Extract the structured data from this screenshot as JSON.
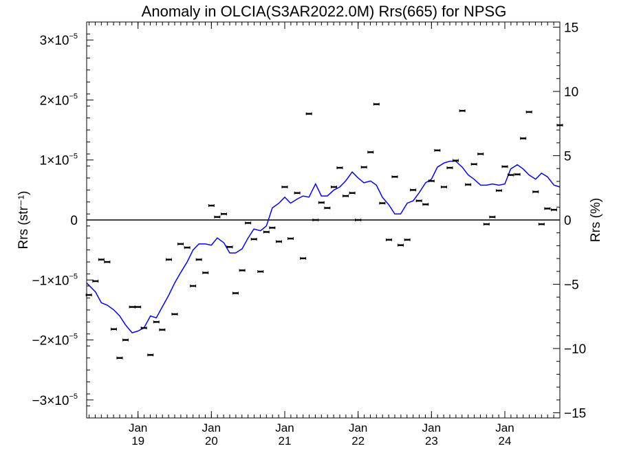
{
  "chart_data": {
    "type": "line",
    "title": "Anomaly in OLCIA(S3AR2022.0M) Rrs(665) for NPSG",
    "ylabel_left": "Rrs (str⁻¹)",
    "ylabel_right": "Rrs (%)",
    "x_range": [
      2018.3,
      2024.75
    ],
    "ylim_left": [
      -3.3e-05,
      3.3e-05
    ],
    "ylim_right": [
      -15.4,
      15.4
    ],
    "grid": false,
    "left_ticks": [
      {
        "v": 3e-05,
        "mant": "3×10",
        "exp": "−5"
      },
      {
        "v": 2e-05,
        "mant": "2×10",
        "exp": "−5"
      },
      {
        "v": 1e-05,
        "mant": "1×10",
        "exp": "−5"
      },
      {
        "v": 0,
        "mant": "0",
        "exp": ""
      },
      {
        "v": -1e-05,
        "mant": "−1×10",
        "exp": "−5"
      },
      {
        "v": -2e-05,
        "mant": "−2×10",
        "exp": "−5"
      },
      {
        "v": -3e-05,
        "mant": "−3×10",
        "exp": "−5"
      }
    ],
    "right_ticks": [
      {
        "v": 15,
        "label": "15"
      },
      {
        "v": 10,
        "label": "10"
      },
      {
        "v": 5,
        "label": "5"
      },
      {
        "v": 0,
        "label": "0"
      },
      {
        "v": -5,
        "label": "−5"
      },
      {
        "v": -10,
        "label": "−10"
      },
      {
        "v": -15,
        "label": "−15"
      }
    ],
    "x_ticks": [
      {
        "x": 2019.0,
        "month": "Jan",
        "year": "19"
      },
      {
        "x": 2020.0,
        "month": "Jan",
        "year": "20"
      },
      {
        "x": 2021.0,
        "month": "Jan",
        "year": "21"
      },
      {
        "x": 2022.0,
        "month": "Jan",
        "year": "22"
      },
      {
        "x": 2023.0,
        "month": "Jan",
        "year": "23"
      },
      {
        "x": 2024.0,
        "month": "Jan",
        "year": "24"
      }
    ],
    "reference_line": {
      "y": 0,
      "color": "#000000"
    },
    "series": [
      {
        "style": "points_with_errorbars",
        "color": "#000000",
        "x": [
          2018.33,
          2018.42,
          2018.5,
          2018.58,
          2018.67,
          2018.75,
          2018.83,
          2018.92,
          2019.0,
          2019.08,
          2019.17,
          2019.25,
          2019.33,
          2019.42,
          2019.5,
          2019.58,
          2019.67,
          2019.75,
          2019.83,
          2019.92,
          2020.0,
          2020.08,
          2020.17,
          2020.25,
          2020.33,
          2020.42,
          2020.5,
          2020.58,
          2020.67,
          2020.75,
          2020.83,
          2020.92,
          2021.0,
          2021.08,
          2021.17,
          2021.25,
          2021.33,
          2021.42,
          2021.5,
          2021.58,
          2021.67,
          2021.75,
          2021.83,
          2021.92,
          2022.0,
          2022.08,
          2022.17,
          2022.25,
          2022.33,
          2022.42,
          2022.5,
          2022.58,
          2022.67,
          2022.75,
          2022.83,
          2022.92,
          2023.0,
          2023.08,
          2023.17,
          2023.25,
          2023.33,
          2023.42,
          2023.5,
          2023.58,
          2023.67,
          2023.75,
          2023.83,
          2023.92,
          2024.0,
          2024.08,
          2024.17,
          2024.25,
          2024.33,
          2024.42,
          2024.5,
          2024.58,
          2024.67,
          2024.75
        ],
        "y": [
          -1.25e-05,
          -1.02e-05,
          -6.6e-06,
          -7e-06,
          -1.82e-05,
          -2.3e-05,
          -2e-05,
          -1.45e-05,
          -1.45e-05,
          -1.8e-05,
          -2.25e-05,
          -1.7e-05,
          -1.83e-05,
          -6.6e-06,
          -1.57e-05,
          -4e-06,
          -4.6e-06,
          -1.1e-05,
          -6.6e-06,
          -8.8e-06,
          2.4e-06,
          5e-07,
          1e-06,
          -4.5e-06,
          -1.22e-05,
          -8.4e-06,
          -5e-07,
          -3.2e-06,
          -8.6e-06,
          -2e-06,
          -1.3e-06,
          -3.6e-06,
          5.5e-06,
          -3.1e-06,
          4.5e-06,
          -6.4e-06,
          1.77e-05,
          0,
          2.9e-06,
          2e-06,
          5.5e-06,
          8.7e-06,
          4e-06,
          4.5e-06,
          0,
          8.8e-06,
          1.13e-05,
          1.93e-05,
          2.8e-06,
          -3.3e-06,
          7.2e-06,
          -4.2e-06,
          -3.3e-06,
          5e-06,
          3.2e-06,
          2.6e-06,
          6.5e-06,
          1.16e-05,
          5.5e-06,
          8.7e-06,
          9.9e-06,
          1.82e-05,
          5.9e-06,
          9.3e-06,
          1.1e-05,
          -7e-07,
          5e-07,
          4.9e-06,
          8.9e-06,
          7.5e-06,
          7.6e-06,
          1.36e-05,
          1.8e-05,
          4.7e-06,
          -7e-07,
          1.9e-06,
          1.7e-06,
          1.58e-05
        ]
      },
      {
        "style": "line",
        "color": "#0000ff",
        "x": [
          2018.3,
          2018.42,
          2018.5,
          2018.58,
          2018.67,
          2018.75,
          2018.83,
          2018.92,
          2019.0,
          2019.08,
          2019.17,
          2019.25,
          2019.33,
          2019.42,
          2019.5,
          2019.58,
          2019.67,
          2019.75,
          2019.83,
          2019.92,
          2020.0,
          2020.08,
          2020.17,
          2020.25,
          2020.33,
          2020.42,
          2020.5,
          2020.58,
          2020.67,
          2020.75,
          2020.83,
          2020.92,
          2021.0,
          2021.08,
          2021.17,
          2021.25,
          2021.33,
          2021.42,
          2021.5,
          2021.58,
          2021.67,
          2021.75,
          2021.83,
          2021.92,
          2022.0,
          2022.08,
          2022.17,
          2022.25,
          2022.33,
          2022.42,
          2022.5,
          2022.58,
          2022.67,
          2022.75,
          2022.83,
          2022.92,
          2023.0,
          2023.08,
          2023.17,
          2023.25,
          2023.33,
          2023.42,
          2023.5,
          2023.58,
          2023.67,
          2023.75,
          2023.83,
          2023.92,
          2024.0,
          2024.08,
          2024.17,
          2024.25,
          2024.33,
          2024.42,
          2024.5,
          2024.58,
          2024.67,
          2024.75
        ],
        "y": [
          -1.05e-05,
          -1.2e-05,
          -1.38e-05,
          -1.42e-05,
          -1.5e-05,
          -1.6e-05,
          -1.75e-05,
          -1.88e-05,
          -1.85e-05,
          -1.8e-05,
          -1.6e-05,
          -1.63e-05,
          -1.45e-05,
          -1.25e-05,
          -1.05e-05,
          -8.8e-06,
          -7e-06,
          -5e-06,
          -4e-06,
          -4e-06,
          -4.2e-06,
          -3e-06,
          -3.8e-06,
          -5.5e-06,
          -5.5e-06,
          -4.8e-06,
          -3e-06,
          -1.5e-06,
          -1.8e-06,
          -1e-06,
          2e-06,
          2.8e-06,
          3.8e-06,
          2.8e-06,
          3.5e-06,
          4e-06,
          3.8e-06,
          6e-06,
          4e-06,
          4e-06,
          5e-06,
          5.5e-06,
          6.5e-06,
          8e-06,
          7e-06,
          6.2e-06,
          6.5e-06,
          5.8e-06,
          3.8e-06,
          2.5e-06,
          1e-06,
          1e-06,
          2.8e-06,
          3.2e-06,
          4.5e-06,
          6.2e-06,
          6.8e-06,
          8.8e-06,
          9.5e-06,
          9.8e-06,
          9.8e-06,
          8.8e-06,
          7.5e-06,
          6.8e-06,
          5.8e-06,
          5.8e-06,
          6e-06,
          5.8e-06,
          6e-06,
          8.5e-06,
          9.2e-06,
          8.5e-06,
          7.5e-06,
          6.8e-06,
          7.8e-06,
          7.2e-06,
          5.8e-06,
          5.5e-06
        ]
      }
    ]
  }
}
